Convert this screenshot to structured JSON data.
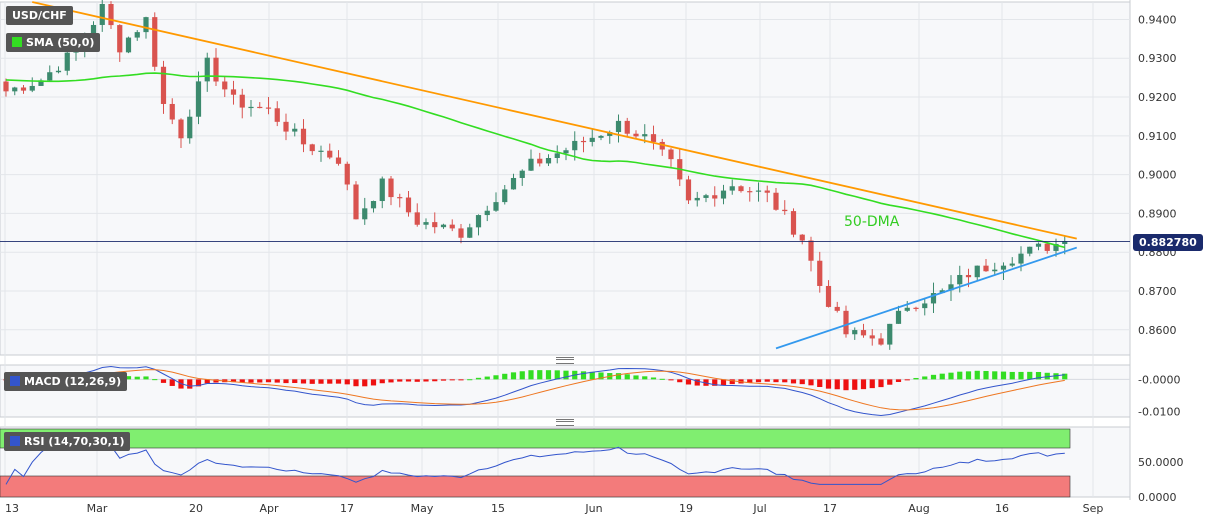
{
  "symbol": "USD/CHF",
  "indicators": {
    "sma": "SMA (50,0)",
    "macd": "MACD (12,26,9)",
    "rsi": "RSI (14,70,30,1)"
  },
  "annotation_50dma": "50-DMA",
  "last_price_label": "0.882780",
  "colors": {
    "bull": "#3c8a6e",
    "bear": "#d9534f",
    "sma": "#33dd22",
    "resistance": "#ff9900",
    "support": "#3399ee",
    "macd_line": "#3355cc",
    "macd_signal": "#ee7722",
    "hist_pos": "#33dd22",
    "hist_neg": "#ee1111",
    "rsi_line": "#3355cc",
    "rsi_overbought": "#80ee70",
    "rsi_oversold": "#f37b7b",
    "price_line": "#1a2a6c"
  },
  "chart_data": [
    {
      "type": "candlestick",
      "title": "USD/CHF",
      "x_ticks": [
        "13",
        "Mar",
        "20",
        "Apr",
        "17",
        "May",
        "15",
        "Jun",
        "19",
        "Jul",
        "17",
        "Aug",
        "16",
        "Sep"
      ],
      "y_ticks": [
        "0.9400",
        "0.9300",
        "0.9200",
        "0.9100",
        "0.9000",
        "0.8900",
        "0.8800",
        "0.8700",
        "0.8600"
      ],
      "ylim": [
        0.8535,
        0.9445
      ],
      "last_price": 0.88278,
      "sma_label": "SMA (50,0)",
      "sma_start": 0.9275,
      "trendlines": [
        {
          "name": "resistance",
          "start": [
            3,
            0.9445
          ],
          "end": [
            121,
            0.8835
          ]
        },
        {
          "name": "support",
          "start": [
            88,
            0.8552
          ],
          "end": [
            121,
            0.8812
          ]
        }
      ]
    },
    {
      "type": "bar",
      "title": "MACD (12,26,9)",
      "y_ticks": [
        "-0.0000",
        "-0.0100"
      ],
      "ylim": [
        -0.0118,
        0.0045
      ]
    },
    {
      "type": "line",
      "title": "RSI (14,70,30,1)",
      "y_ticks": [
        "50.0000",
        "0.0000"
      ],
      "ylim": [
        0,
        100
      ],
      "overbought": 70,
      "oversold": 30
    }
  ]
}
